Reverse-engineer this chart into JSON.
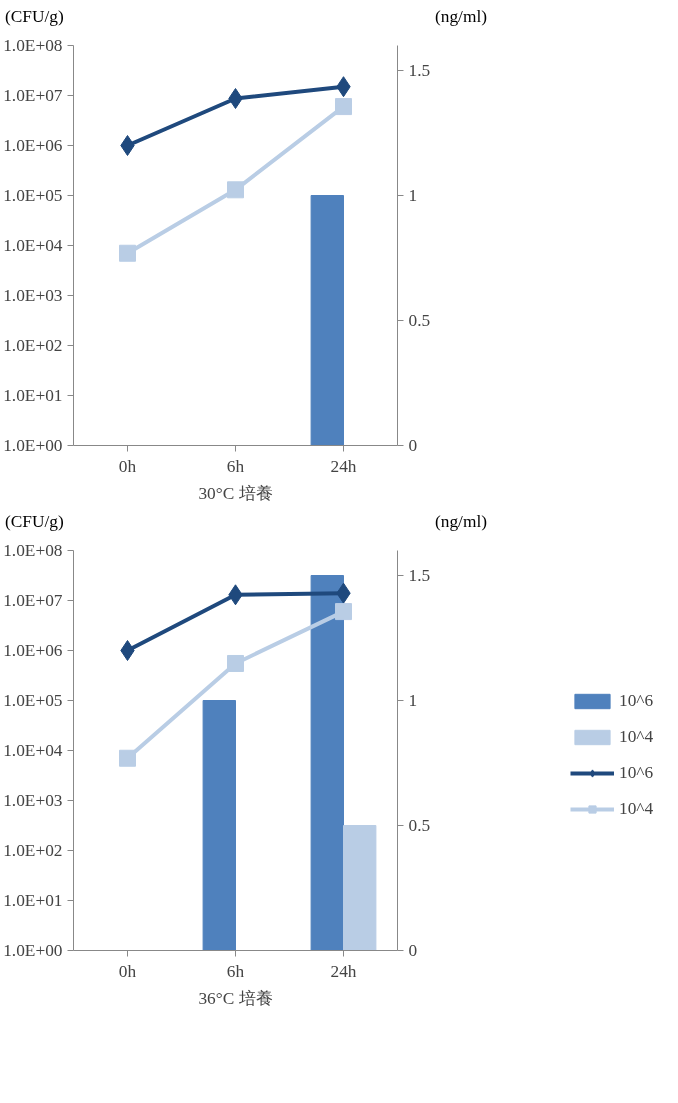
{
  "chart_data": [
    {
      "type": "bar",
      "xlabel": "30°C 培養",
      "ylabel": "(CFU/g)",
      "y2label": "(ng/ml)",
      "categories": [
        "0h",
        "6h",
        "24h"
      ],
      "log": "y",
      "ylim": [
        1,
        100000000
      ],
      "yticks": [
        {
          "value": 1,
          "label": "1.0E+00"
        },
        {
          "value": 10,
          "label": "1.0E+01"
        },
        {
          "value": 100,
          "label": "1.0E+02"
        },
        {
          "value": 1000,
          "label": "1.0E+03"
        },
        {
          "value": 10000,
          "label": "1.0E+04"
        },
        {
          "value": 100000,
          "label": "1.0E+05"
        },
        {
          "value": 1000000,
          "label": "1.0E+06"
        },
        {
          "value": 10000000,
          "label": "1.0E+07"
        },
        {
          "value": 100000000,
          "label": "1.0E+08"
        }
      ],
      "y2lim": [
        0,
        1.6
      ],
      "y2ticks": [
        0,
        0.5,
        1,
        1.5
      ],
      "grid": false,
      "series": [
        {
          "axis": "y2",
          "color": "#4f81bd",
          "values": [
            null,
            null,
            1.0
          ]
        },
        {
          "type": "line",
          "color": "#1f497d",
          "marker": "diamond",
          "values": [
            1000000,
            8700000,
            15000000
          ]
        },
        {
          "type": "line",
          "color": "#b9cde5",
          "marker": "square",
          "values": [
            7000,
            130000,
            6000000
          ]
        }
      ]
    },
    {
      "type": "bar",
      "xlabel": "36°C 培養",
      "ylabel": "(CFU/g)",
      "y2label": "(ng/ml)",
      "categories": [
        "0h",
        "6h",
        "24h"
      ],
      "log": "y",
      "ylim": [
        1,
        100000000
      ],
      "yticks": [
        {
          "value": 1,
          "label": "1.0E+00"
        },
        {
          "value": 10,
          "label": "1.0E+01"
        },
        {
          "value": 100,
          "label": "1.0E+02"
        },
        {
          "value": 1000,
          "label": "1.0E+03"
        },
        {
          "value": 10000,
          "label": "1.0E+04"
        },
        {
          "value": 100000,
          "label": "1.0E+05"
        },
        {
          "value": 1000000,
          "label": "1.0E+06"
        },
        {
          "value": 10000000,
          "label": "1.0E+07"
        },
        {
          "value": 100000000,
          "label": "1.0E+08"
        }
      ],
      "y2lim": [
        0,
        1.6
      ],
      "y2ticks": [
        0,
        0.5,
        1,
        1.5
      ],
      "grid": false,
      "legend": "right",
      "series": [
        {
          "axis": "y2",
          "name": "10^6",
          "color": "#4f81bd",
          "values": [
            null,
            1.0,
            1.5
          ]
        },
        {
          "axis": "y2",
          "name": "10^4",
          "color": "#b9cde5",
          "values": [
            null,
            null,
            0.5
          ]
        },
        {
          "type": "line",
          "name": "10^6",
          "color": "#1f497d",
          "marker": "diamond",
          "values": [
            1000000,
            13000000,
            14000000
          ]
        },
        {
          "type": "line",
          "name": "10^4",
          "color": "#b9cde5",
          "marker": "square",
          "values": [
            7000,
            550000,
            6000000
          ]
        }
      ]
    }
  ]
}
